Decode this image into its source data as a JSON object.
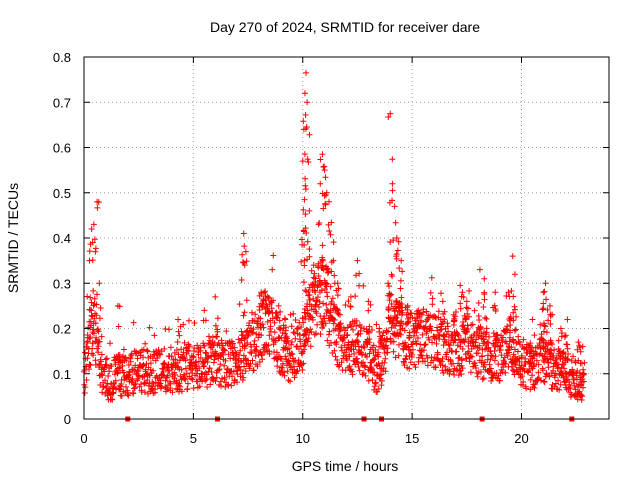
{
  "chart_data": {
    "type": "scatter",
    "title": "Day 270 of 2024, SRMTID for receiver dare",
    "xlabel": "GPS time / hours",
    "ylabel": "SRMTID / TECUs",
    "xlim": [
      0,
      24
    ],
    "ylim": [
      0,
      0.8
    ],
    "grid": true,
    "marker": "+",
    "series_color": "#ff0000",
    "x_ticks": [
      {
        "value": 0,
        "label": "0"
      },
      {
        "value": 5,
        "label": "5"
      },
      {
        "value": 10,
        "label": "10"
      },
      {
        "value": 15,
        "label": "15"
      },
      {
        "value": 20,
        "label": "20"
      }
    ],
    "y_ticks": [
      {
        "value": 0,
        "label": "0"
      },
      {
        "value": 0.1,
        "label": "0.1"
      },
      {
        "value": 0.2,
        "label": "0.2"
      },
      {
        "value": 0.3,
        "label": "0.3"
      },
      {
        "value": 0.4,
        "label": "0.4"
      },
      {
        "value": 0.5,
        "label": "0.5"
      },
      {
        "value": 0.6,
        "label": "0.6"
      },
      {
        "value": 0.7,
        "label": "0.7"
      },
      {
        "value": 0.8,
        "label": "0.8"
      }
    ],
    "gap_markers_hours": [
      2.0,
      6.1,
      12.8,
      13.6,
      18.2,
      22.3
    ],
    "profile": [
      [
        0.0,
        0.09
      ],
      [
        0.2,
        0.17
      ],
      [
        0.5,
        0.2
      ],
      [
        0.8,
        0.1
      ],
      [
        1.2,
        0.08
      ],
      [
        1.5,
        0.1
      ],
      [
        2.0,
        0.09
      ],
      [
        2.5,
        0.11
      ],
      [
        3.0,
        0.1
      ],
      [
        3.5,
        0.11
      ],
      [
        4.0,
        0.1
      ],
      [
        4.5,
        0.11
      ],
      [
        5.0,
        0.12
      ],
      [
        5.5,
        0.12
      ],
      [
        6.0,
        0.13
      ],
      [
        6.5,
        0.12
      ],
      [
        7.0,
        0.12
      ],
      [
        7.5,
        0.15
      ],
      [
        8.0,
        0.18
      ],
      [
        8.3,
        0.22
      ],
      [
        8.7,
        0.2
      ],
      [
        9.0,
        0.15
      ],
      [
        9.5,
        0.13
      ],
      [
        10.0,
        0.17
      ],
      [
        10.3,
        0.22
      ],
      [
        10.7,
        0.26
      ],
      [
        11.0,
        0.28
      ],
      [
        11.3,
        0.22
      ],
      [
        11.7,
        0.17
      ],
      [
        12.0,
        0.15
      ],
      [
        12.5,
        0.16
      ],
      [
        13.0,
        0.14
      ],
      [
        13.4,
        0.1
      ],
      [
        13.7,
        0.14
      ],
      [
        14.0,
        0.22
      ],
      [
        14.3,
        0.2
      ],
      [
        14.7,
        0.18
      ],
      [
        15.0,
        0.17
      ],
      [
        15.5,
        0.18
      ],
      [
        16.0,
        0.17
      ],
      [
        16.5,
        0.16
      ],
      [
        17.0,
        0.15
      ],
      [
        17.5,
        0.17
      ],
      [
        18.0,
        0.15
      ],
      [
        18.5,
        0.14
      ],
      [
        19.0,
        0.13
      ],
      [
        19.5,
        0.17
      ],
      [
        20.0,
        0.12
      ],
      [
        20.5,
        0.11
      ],
      [
        21.0,
        0.14
      ],
      [
        21.5,
        0.11
      ],
      [
        22.0,
        0.1
      ],
      [
        22.5,
        0.09
      ],
      [
        22.85,
        0.08
      ]
    ],
    "spikes": [
      [
        0.25,
        0.35
      ],
      [
        0.35,
        0.42
      ],
      [
        0.45,
        0.43
      ],
      [
        0.6,
        0.48
      ],
      [
        0.7,
        0.3
      ],
      [
        1.55,
        0.25
      ],
      [
        4.3,
        0.22
      ],
      [
        5.5,
        0.24
      ],
      [
        6.0,
        0.27
      ],
      [
        7.3,
        0.41
      ],
      [
        7.4,
        0.37
      ],
      [
        8.1,
        0.28
      ],
      [
        8.4,
        0.27
      ],
      [
        8.9,
        0.25
      ],
      [
        9.2,
        0.22
      ],
      [
        10.0,
        0.57
      ],
      [
        10.05,
        0.64
      ],
      [
        10.1,
        0.72
      ],
      [
        10.15,
        0.765
      ],
      [
        10.2,
        0.7
      ],
      [
        10.3,
        0.46
      ],
      [
        10.5,
        0.34
      ],
      [
        10.8,
        0.52
      ],
      [
        10.9,
        0.585
      ],
      [
        11.0,
        0.55
      ],
      [
        11.1,
        0.5
      ],
      [
        11.2,
        0.48
      ],
      [
        11.4,
        0.35
      ],
      [
        11.6,
        0.3
      ],
      [
        12.2,
        0.27
      ],
      [
        12.5,
        0.35
      ],
      [
        13.0,
        0.26
      ],
      [
        13.5,
        0.2
      ],
      [
        13.9,
        0.3
      ],
      [
        14.0,
        0.675
      ],
      [
        14.1,
        0.52
      ],
      [
        14.2,
        0.47
      ],
      [
        14.3,
        0.4
      ],
      [
        14.5,
        0.35
      ],
      [
        14.8,
        0.25
      ],
      [
        15.3,
        0.24
      ],
      [
        16.4,
        0.26
      ],
      [
        16.9,
        0.23
      ],
      [
        17.3,
        0.28
      ],
      [
        17.5,
        0.26
      ],
      [
        18.1,
        0.33
      ],
      [
        18.3,
        0.31
      ],
      [
        18.8,
        0.28
      ],
      [
        19.4,
        0.28
      ],
      [
        19.6,
        0.36
      ],
      [
        19.7,
        0.32
      ],
      [
        20.5,
        0.22
      ],
      [
        21.0,
        0.28
      ],
      [
        21.1,
        0.3
      ],
      [
        21.3,
        0.25
      ],
      [
        21.8,
        0.2
      ],
      [
        22.1,
        0.22
      ],
      [
        22.6,
        0.17
      ],
      [
        22.8,
        0.16
      ]
    ]
  }
}
